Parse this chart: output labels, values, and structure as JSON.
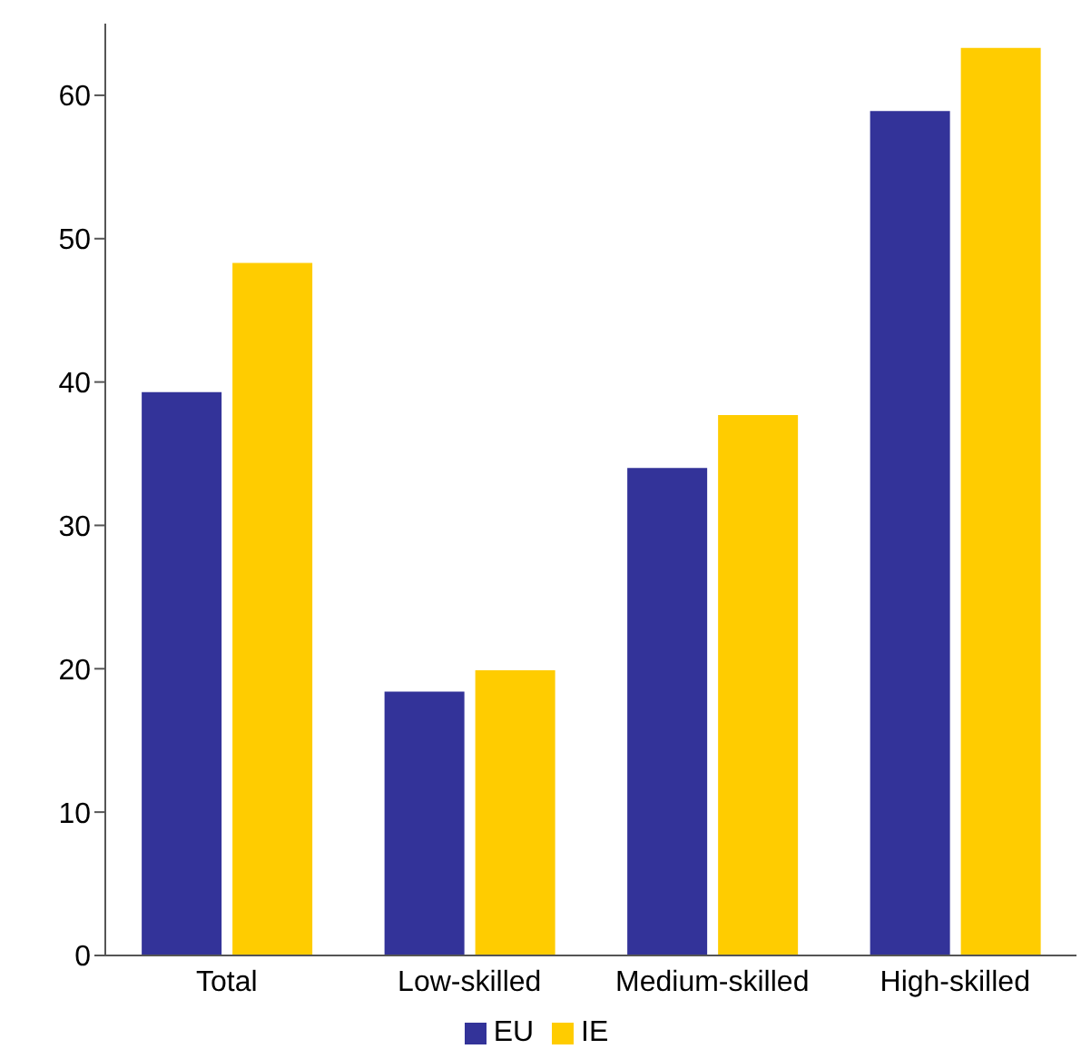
{
  "chart_data": {
    "type": "bar",
    "categories": [
      "Total",
      "Low-skilled",
      "Medium-skilled",
      "High-skilled"
    ],
    "series": [
      {
        "name": "EU",
        "color": "#333399",
        "values": [
          39.3,
          18.4,
          34.0,
          58.9
        ]
      },
      {
        "name": "IE",
        "color": "#ffcc00",
        "values": [
          48.3,
          19.9,
          37.7,
          63.3
        ]
      }
    ],
    "ylim": [
      0,
      65
    ],
    "yticks": [
      0,
      10,
      20,
      30,
      40,
      50,
      60
    ],
    "grid": false,
    "legend": "bottom"
  }
}
